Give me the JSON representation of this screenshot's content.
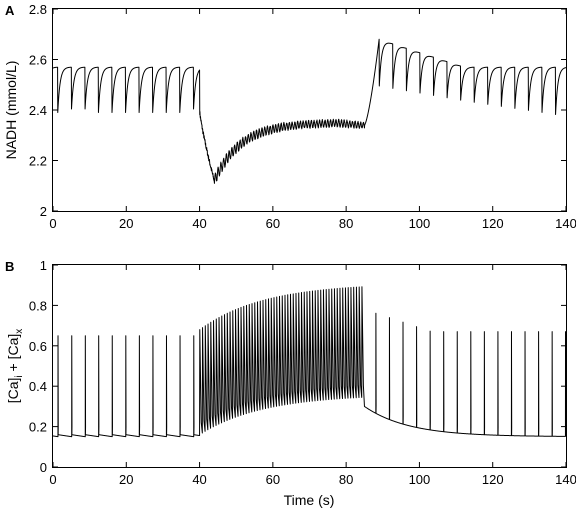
{
  "figure": {
    "panel_letters": [
      "A",
      "B"
    ],
    "xlabel": "Time (s)"
  },
  "chart_data": [
    {
      "type": "line",
      "panel": "A",
      "xlabel": "",
      "ylabel": "NADH (mmol/L)",
      "xlim": [
        0,
        140
      ],
      "ylim": [
        2,
        2.8
      ],
      "xticks": [
        0,
        20,
        40,
        60,
        80,
        100,
        120,
        140
      ],
      "yticks": [
        2,
        2.2,
        2.4,
        2.6,
        2.8
      ],
      "ytick_labels": [
        "2",
        "2.2",
        "2.4",
        "2.6",
        "2.8"
      ],
      "series": [
        {
          "description_phases": [
            {
              "t_start": 0,
              "t_end": 40,
              "behavior": "oscillation",
              "period": 3.7,
              "min": 2.39,
              "max": 2.57
            },
            {
              "t_start": 40,
              "t_end": 44,
              "behavior": "drop",
              "from": 2.4,
              "to": 2.12
            },
            {
              "t_start": 44,
              "t_end": 85,
              "behavior": "noisy recovery",
              "plateau": 2.35,
              "noise": 0.015
            },
            {
              "t_start": 85,
              "t_end": 89,
              "behavior": "rise",
              "from": 2.34,
              "to": 2.68
            },
            {
              "t_start": 89,
              "t_end": 140,
              "behavior": "oscillation",
              "period": 3.7,
              "min_start": 2.48,
              "min_end": 2.36,
              "max_start": 2.68,
              "max_end": 2.57
            }
          ]
        }
      ]
    },
    {
      "type": "line",
      "panel": "B",
      "xlabel": "Time (s)",
      "ylabel": "[Ca]i + [Ca]x",
      "xlim": [
        0,
        140
      ],
      "ylim": [
        0,
        1
      ],
      "xticks": [
        0,
        20,
        40,
        60,
        80,
        100,
        120,
        140
      ],
      "yticks": [
        0,
        0.2,
        0.4,
        0.6,
        0.8,
        1
      ],
      "ytick_labels": [
        "0",
        "0.2",
        "0.4",
        "0.6",
        "0.8",
        "1"
      ],
      "series": [
        {
          "description_phases": [
            {
              "t_start": 0,
              "t_end": 40,
              "behavior": "spikes",
              "period": 3.7,
              "baseline": 0.15,
              "peak": 0.65
            },
            {
              "t_start": 40,
              "t_end": 85,
              "behavior": "fast oscillation",
              "period": 0.75,
              "min_start": 0.16,
              "min_end": 0.36,
              "max_start": 0.68,
              "max_end": 0.91
            },
            {
              "t_start": 85,
              "t_end": 140,
              "behavior": "decaying baseline with spikes",
              "period": 3.7,
              "baseline_start": 0.3,
              "baseline_end": 0.15,
              "peak_start": 0.78,
              "peak_end": 0.67
            }
          ]
        }
      ]
    }
  ]
}
